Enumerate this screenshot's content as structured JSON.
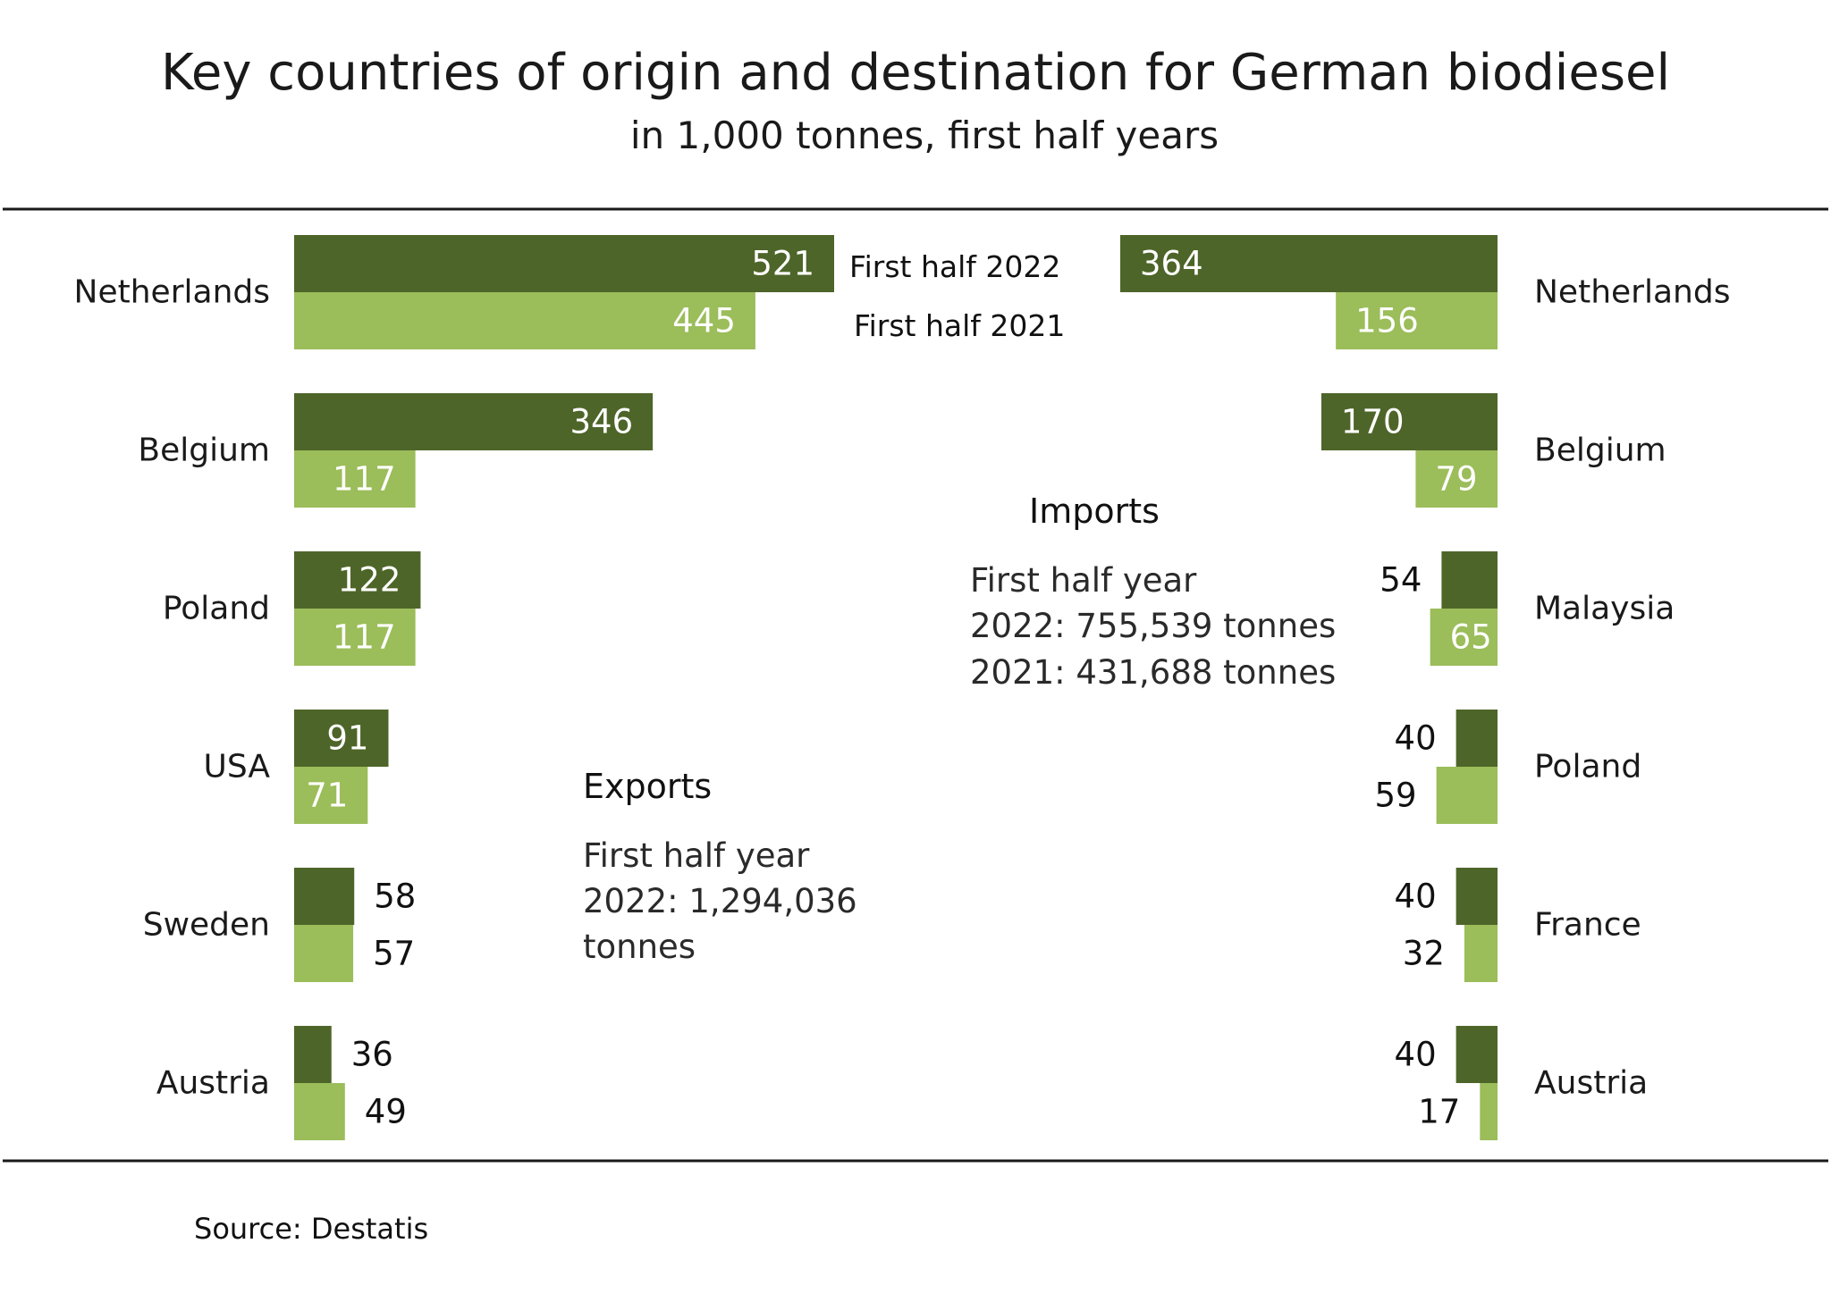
{
  "chart_data": {
    "type": "bar",
    "title": "Key countries of origin and destination for German biodiesel",
    "subtitle": "in 1,000 tonnes, first half years",
    "colors": {
      "first_half_2022": "#4e6529",
      "first_half_2021": "#9bbd5a"
    },
    "legend": [
      "First half 2022",
      "First half 2021"
    ],
    "exports": {
      "heading": "Exports",
      "note_lines": [
        "First half year",
        "2022: 1,294,036",
        "tonnes"
      ],
      "categories": [
        "Netherlands",
        "Belgium",
        "Poland",
        "USA",
        "Sweden",
        "Austria"
      ],
      "series": [
        {
          "name": "First half 2022",
          "values": [
            521,
            346,
            122,
            91,
            58,
            36
          ]
        },
        {
          "name": "First half 2021",
          "values": [
            445,
            117,
            117,
            71,
            57,
            49
          ]
        }
      ]
    },
    "imports": {
      "heading": "Imports",
      "note_lines": [
        "First half year",
        "2022: 755,539 tonnes",
        "2021: 431,688 tonnes"
      ],
      "categories": [
        "Netherlands",
        "Belgium",
        "Malaysia",
        "Poland",
        "France",
        "Austria"
      ],
      "series": [
        {
          "name": "First half 2022",
          "values": [
            364,
            170,
            54,
            40,
            40,
            40
          ]
        },
        {
          "name": "First half 2021",
          "values": [
            156,
            79,
            65,
            59,
            32,
            17
          ]
        }
      ]
    }
  },
  "source": "Source: Destatis"
}
